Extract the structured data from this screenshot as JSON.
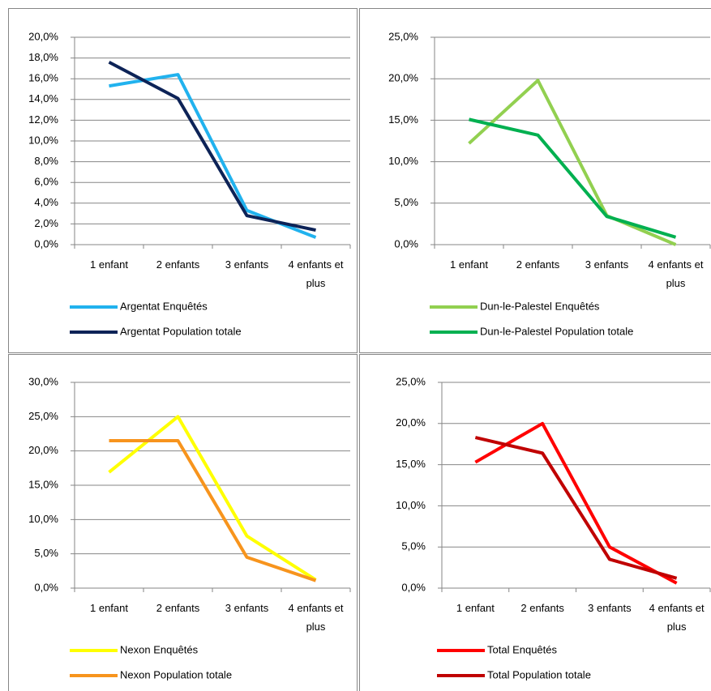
{
  "chart_data": [
    {
      "type": "line",
      "categories": [
        "1 enfant",
        "2 enfants",
        "3 enfants",
        "4 enfants et plus"
      ],
      "series": [
        {
          "name": "Argentat Enquêtés",
          "color": "#21b2ee",
          "values": [
            15.3,
            16.4,
            3.3,
            0.7
          ]
        },
        {
          "name": "Argentat Population totale",
          "color": "#0d2357",
          "values": [
            17.6,
            14.1,
            2.8,
            1.4
          ]
        }
      ],
      "ylim": [
        0,
        20
      ],
      "yticks": [
        {
          "value": 0,
          "label": "0,0%"
        },
        {
          "value": 2,
          "label": "2,0%"
        },
        {
          "value": 4,
          "label": "4,0%"
        },
        {
          "value": 6,
          "label": "6,0%"
        },
        {
          "value": 8,
          "label": "8,0%"
        },
        {
          "value": 10,
          "label": "10,0%"
        },
        {
          "value": 12,
          "label": "12,0%"
        },
        {
          "value": 14,
          "label": "14,0%"
        },
        {
          "value": 16,
          "label": "16,0%"
        },
        {
          "value": 18,
          "label": "18,0%"
        },
        {
          "value": 20,
          "label": "20,0%"
        }
      ],
      "grid": true
    },
    {
      "type": "line",
      "categories": [
        "1 enfant",
        "2 enfants",
        "3 enfants",
        "4 enfants et plus"
      ],
      "series": [
        {
          "name": "Dun-le-Palestel Enquêtés",
          "color": "#92d050",
          "values": [
            12.2,
            19.8,
            3.5,
            0.0
          ]
        },
        {
          "name": "Dun-le-Palestel Population totale",
          "color": "#00b050",
          "values": [
            15.1,
            13.2,
            3.4,
            0.9
          ]
        }
      ],
      "ylim": [
        0,
        25
      ],
      "yticks": [
        {
          "value": 0,
          "label": "0,0%"
        },
        {
          "value": 5,
          "label": "5,0%"
        },
        {
          "value": 10,
          "label": "10,0%"
        },
        {
          "value": 15,
          "label": "15,0%"
        },
        {
          "value": 20,
          "label": "20,0%"
        },
        {
          "value": 25,
          "label": "25,0%"
        }
      ],
      "grid": true
    },
    {
      "type": "line",
      "categories": [
        "1 enfant",
        "2 enfants",
        "3 enfants",
        "4 enfants et plus"
      ],
      "series": [
        {
          "name": "Nexon Enquêtés",
          "color": "#ffff00",
          "values": [
            16.9,
            25.0,
            7.6,
            1.2
          ]
        },
        {
          "name": "Nexon Population totale",
          "color": "#f7941d",
          "values": [
            21.5,
            21.5,
            4.5,
            1.1
          ]
        }
      ],
      "ylim": [
        0,
        30
      ],
      "yticks": [
        {
          "value": 0,
          "label": "0,0%"
        },
        {
          "value": 5,
          "label": "5,0%"
        },
        {
          "value": 10,
          "label": "10,0%"
        },
        {
          "value": 15,
          "label": "15,0%"
        },
        {
          "value": 20,
          "label": "20,0%"
        },
        {
          "value": 25,
          "label": "25,0%"
        },
        {
          "value": 30,
          "label": "30,0%"
        }
      ],
      "grid": true
    },
    {
      "type": "line",
      "categories": [
        "1 enfant",
        "2 enfants",
        "3 enfants",
        "4 enfants et plus"
      ],
      "series": [
        {
          "name": "Total Enquêtés",
          "color": "#ff0000",
          "values": [
            15.3,
            20.0,
            5.0,
            0.6
          ]
        },
        {
          "name": "Total Population totale",
          "color": "#c00000",
          "values": [
            18.3,
            16.4,
            3.5,
            1.2
          ]
        }
      ],
      "ylim": [
        0,
        25
      ],
      "yticks": [
        {
          "value": 0,
          "label": "0,0%"
        },
        {
          "value": 5,
          "label": "5,0%"
        },
        {
          "value": 10,
          "label": "10,0%"
        },
        {
          "value": 15,
          "label": "15,0%"
        },
        {
          "value": 20,
          "label": "20,0%"
        },
        {
          "value": 25,
          "label": "25,0%"
        }
      ],
      "grid": true
    }
  ]
}
